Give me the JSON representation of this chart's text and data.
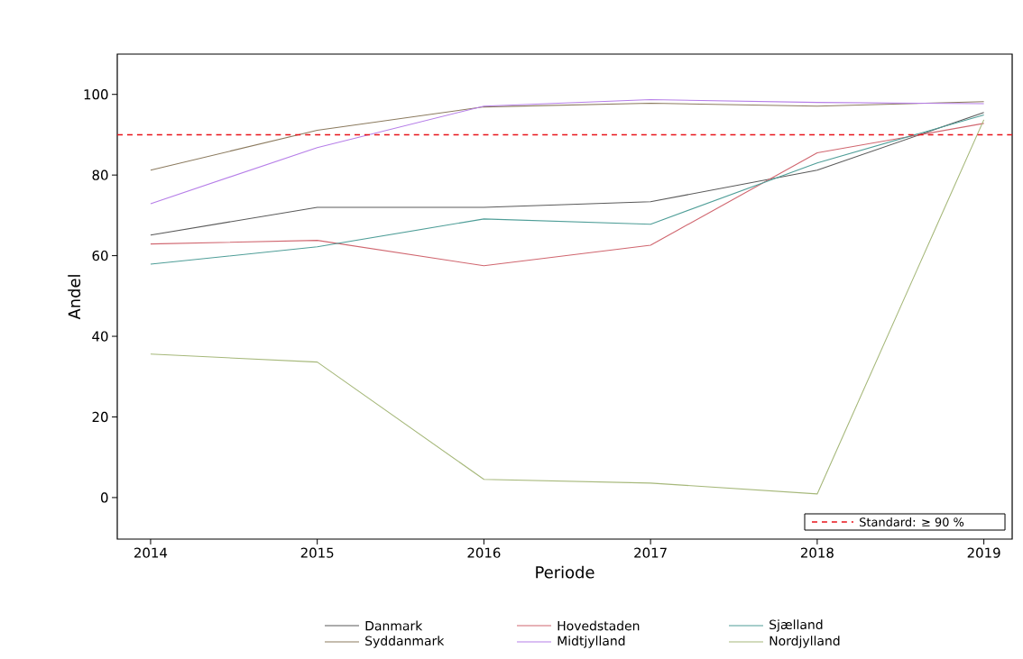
{
  "chart_data": {
    "type": "line",
    "xlabel": "Periode",
    "ylabel": "Andel",
    "x": [
      2014,
      2015,
      2016,
      2017,
      2018,
      2019
    ],
    "xlim": [
      2013.8,
      2019.17
    ],
    "xticks": [
      2014,
      2015,
      2016,
      2017,
      2018,
      2019
    ],
    "ylim": [
      -10.3,
      110
    ],
    "yticks": [
      0,
      20,
      40,
      60,
      80,
      100
    ],
    "grid": false,
    "legend": "bottom",
    "marker": "none",
    "line_style": "solid",
    "ref_lines": [
      {
        "axis": "y",
        "value": 90,
        "label": "Standard: ≥ 90 %",
        "color": "#e8141b",
        "line_style": "dashed"
      }
    ],
    "series": [
      {
        "name": "Danmark",
        "color": "#5a5a5a",
        "values": [
          65.1,
          72.0,
          72.0,
          73.4,
          81.2,
          95.5
        ]
      },
      {
        "name": "Hovedstaden",
        "color": "#d0666f",
        "values": [
          62.9,
          63.8,
          57.5,
          62.6,
          85.5,
          92.8
        ]
      },
      {
        "name": "Sjælland",
        "color": "#4f9e98",
        "values": [
          57.9,
          62.2,
          69.1,
          67.8,
          83.0,
          94.9
        ]
      },
      {
        "name": "Syddanmark",
        "color": "#8b7a5e",
        "values": [
          81.2,
          91.1,
          96.9,
          97.8,
          97.1,
          98.2
        ]
      },
      {
        "name": "Midtjylland",
        "color": "#b67ee8",
        "values": [
          72.9,
          86.8,
          97.1,
          98.7,
          98.0,
          97.7
        ]
      },
      {
        "name": "Nordjylland",
        "color": "#a6b87a",
        "values": [
          35.6,
          33.6,
          4.5,
          3.6,
          0.9,
          93.7
        ]
      }
    ]
  }
}
